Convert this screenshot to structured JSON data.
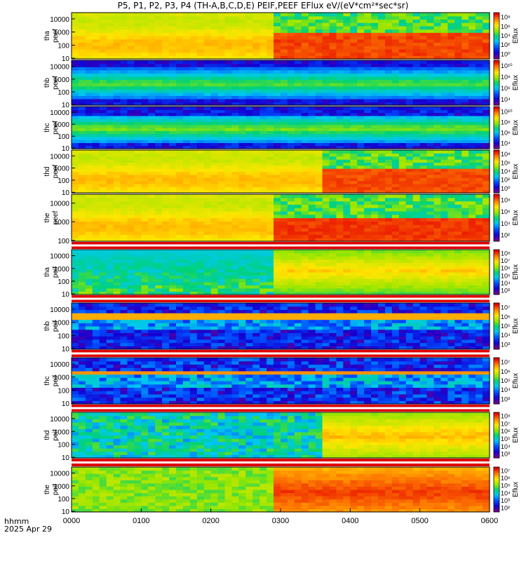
{
  "title": "P5, P1, P2, P3, P4 (TH-A,B,C,D,E) PEIF,PEEF EFlux eV/(eV*cm²*sec*sr)",
  "footer": {
    "hhmm": "hhmm",
    "date": "2025 Apr 29"
  },
  "chart_data": {
    "type": "heatmap",
    "x_ticks": [
      "0000",
      "0100",
      "0200",
      "0300",
      "0400",
      "0500",
      "0600"
    ],
    "xlim": [
      "0000",
      "0600"
    ],
    "colorbar_label": "Eflux",
    "panels": [
      {
        "label1": "tha",
        "label2": "peef",
        "y_ticks": [
          "10",
          "100",
          "1000",
          "10000"
        ],
        "cbar_ticks": [
          "10⁰",
          "10²",
          "10⁴",
          "10⁶",
          "10⁸"
        ]
      },
      {
        "label1": "thb",
        "label2": "peef",
        "y_ticks": [
          "10",
          "100",
          "1000",
          "10000"
        ],
        "cbar_ticks": [
          "10⁴",
          "10⁶",
          "10⁸",
          "10¹⁰"
        ]
      },
      {
        "label1": "thc",
        "label2": "peef",
        "y_ticks": [
          "10",
          "100",
          "1000",
          "10000"
        ],
        "cbar_ticks": [
          "10⁴",
          "10⁶",
          "10⁸",
          "10¹⁰"
        ]
      },
      {
        "label1": "thd",
        "label2": "peef",
        "y_ticks": [
          "10",
          "100",
          "1000",
          "10000"
        ],
        "cbar_ticks": [
          "10⁰",
          "10²",
          "10⁴",
          "10⁶",
          "10⁸"
        ]
      },
      {
        "label1": "the",
        "label2": "peef",
        "y_ticks": [
          "100",
          "1000",
          "10000"
        ],
        "cbar_ticks": [
          "10²",
          "10⁴",
          "10⁶",
          "10⁸"
        ]
      },
      {
        "label1": "tha",
        "label2": "peif",
        "y_ticks": [
          "10",
          "100",
          "1000",
          "10000"
        ],
        "cbar_ticks": [
          "10³",
          "10⁴",
          "10⁵",
          "10⁶",
          "10⁷",
          "10⁸"
        ]
      },
      {
        "label1": "thb",
        "label2": "peif",
        "y_ticks": [
          "10",
          "100",
          "1000",
          "10000"
        ],
        "cbar_ticks": [
          "10³",
          "10⁴",
          "10⁵",
          "10⁶",
          "10⁷"
        ]
      },
      {
        "label1": "thc",
        "label2": "peif",
        "y_ticks": [
          "10",
          "100",
          "1000",
          "10000"
        ],
        "cbar_ticks": [
          "10³",
          "10⁴",
          "10⁵",
          "10⁶",
          "10⁷"
        ]
      },
      {
        "label1": "thd",
        "label2": "peif",
        "y_ticks": [
          "10",
          "100",
          "1000",
          "10000"
        ],
        "cbar_ticks": [
          "10³",
          "10⁴",
          "10⁵",
          "10⁶",
          "10⁷",
          "10⁸"
        ]
      },
      {
        "label1": "the",
        "label2": "peif",
        "y_ticks": [
          "10",
          "100",
          "1000",
          "10000"
        ],
        "cbar_ticks": [
          "10²",
          "10³",
          "10⁴",
          "10⁵",
          "10⁶",
          "10⁷"
        ]
      }
    ]
  }
}
